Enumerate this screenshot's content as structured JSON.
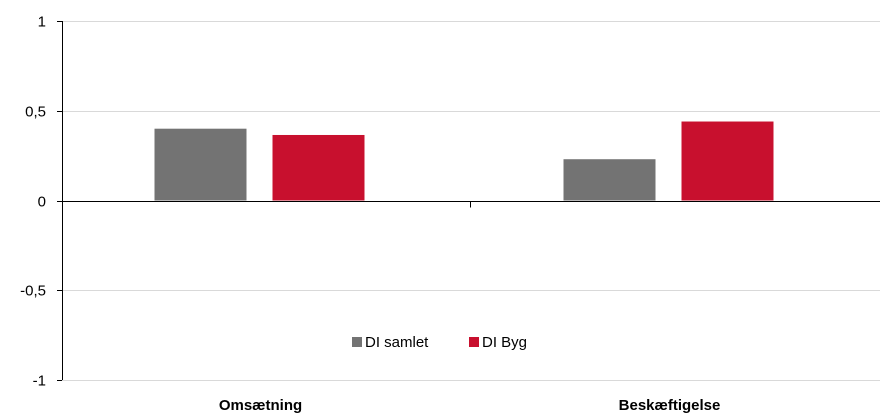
{
  "chart_data": {
    "type": "bar",
    "categories": [
      "Omsætning",
      "Beskæftigelse"
    ],
    "series": [
      {
        "name": "DI samlet",
        "color": "#737373",
        "values": [
          0.4,
          0.23
        ]
      },
      {
        "name": "DI Byg",
        "color": "#c8102e",
        "values": [
          0.365,
          0.44
        ]
      }
    ],
    "ylim": [
      -1,
      1
    ],
    "yticks": [
      1,
      0.5,
      0,
      -0.5,
      -1
    ],
    "ytick_labels": [
      "1",
      "0,5",
      "0",
      "-0,5",
      "-1"
    ],
    "grid": true,
    "legend_position": "bottom-center"
  }
}
